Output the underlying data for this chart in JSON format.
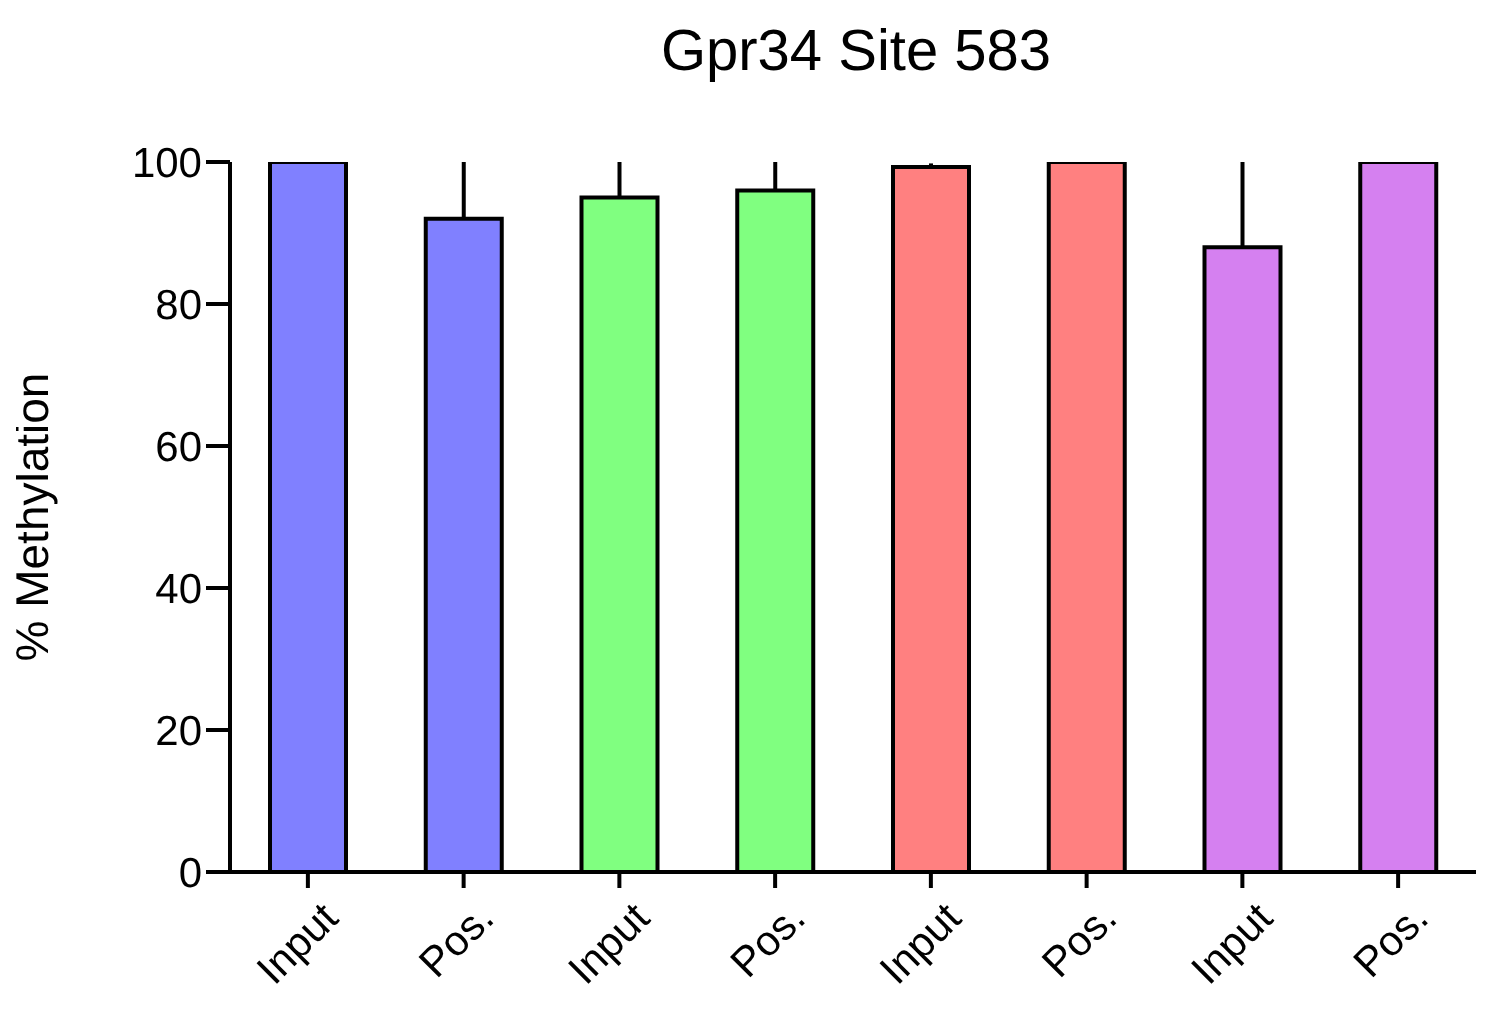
{
  "chart_data": {
    "type": "bar",
    "title": "Gpr34 Site 583",
    "ylabel": "% Methylation",
    "categories": [
      "Input",
      "Pos.",
      "Input",
      "Pos.",
      "Input",
      "Pos.",
      "Input",
      "Pos."
    ],
    "values": [
      100,
      92,
      95,
      96,
      99.3,
      100,
      88,
      100
    ],
    "colors": [
      "#8080ff",
      "#8080ff",
      "#80ff80",
      "#80ff80",
      "#ff8080",
      "#ff8080",
      "#d580f0",
      "#d580f0"
    ],
    "errors": [
      null,
      [
        92,
        100
      ],
      [
        95,
        100
      ],
      [
        96,
        100
      ],
      [
        99.3,
        99.8
      ],
      null,
      [
        88,
        100
      ],
      null
    ],
    "ylim": [
      0,
      100
    ],
    "yticks": [
      0,
      20,
      40,
      60,
      80,
      100
    ],
    "grid": false,
    "legend": false
  }
}
